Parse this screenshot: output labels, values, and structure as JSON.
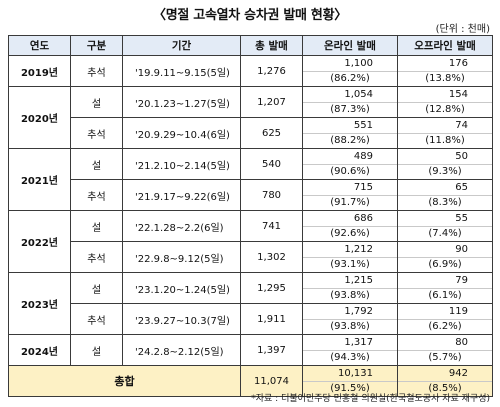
{
  "title": "〈명절 고속열차 승차권 발매 현황〉",
  "unit": "(단위 : 천매)",
  "headers": [
    "연도",
    "구분",
    "기간",
    "총 발매",
    "온라인 발매",
    "오프라인 발매"
  ],
  "rows": [
    {
      "year": "2019년",
      "type": "추석",
      "period": "'19.9.11~9.15(5일)",
      "total": "1,276",
      "online": "1,100",
      "online_pct": "(86.2%)",
      "offline": "176",
      "offline_pct": "(13.8%)"
    },
    {
      "year": "2020년",
      "type": "설",
      "period": "'20.1.23~1.27(5일)",
      "total": "1,207",
      "online": "1,054",
      "online_pct": "(87.3%)",
      "offline": "154",
      "offline_pct": "(12.8%)"
    },
    {
      "year": "",
      "type": "추석",
      "period": "'20.9.29~10.4(6일)",
      "total": "625",
      "online": "551",
      "online_pct": "(88.2%)",
      "offline": "74",
      "offline_pct": "(11.8%)"
    },
    {
      "year": "2021년",
      "type": "설",
      "period": "'21.2.10~2.14(5일)",
      "total": "540",
      "online": "489",
      "online_pct": "(90.6%)",
      "offline": "50",
      "offline_pct": "(9.3%)"
    },
    {
      "year": "",
      "type": "추석",
      "period": "'21.9.17~9.22(6일)",
      "total": "780",
      "online": "715",
      "online_pct": "(91.7%)",
      "offline": "65",
      "offline_pct": "(8.3%)"
    },
    {
      "year": "2022년",
      "type": "설",
      "period": "'22.1.28~2.2(6일)",
      "total": "741",
      "online": "686",
      "online_pct": "(92.6%)",
      "offline": "55",
      "offline_pct": "(7.4%)"
    },
    {
      "year": "",
      "type": "추석",
      "period": "'22.9.8~9.12(5일)",
      "total": "1,302",
      "online": "1,212",
      "online_pct": "(93.1%)",
      "offline": "90",
      "offline_pct": "(6.9%)"
    },
    {
      "year": "2023년",
      "type": "설",
      "period": "'23.1.20~1.24(5일)",
      "total": "1,295",
      "online": "1,215",
      "online_pct": "(93.8%)",
      "offline": "79",
      "offline_pct": "(6.1%)"
    },
    {
      "year": "",
      "type": "추석",
      "period": "'23.9.27~10.3(7일)",
      "total": "1,911",
      "online": "1,792",
      "online_pct": "(93.8%)",
      "offline": "119",
      "offline_pct": "(6.2%)"
    },
    {
      "year": "2024년",
      "type": "설",
      "period": "'24.2.8~2.12(5일)",
      "total": "1,397",
      "online": "1,317",
      "online_pct": "(94.3%)",
      "offline": "80",
      "offline_pct": "(5.7%)"
    }
  ],
  "total_row": {
    "label": "총합",
    "total": "11,074",
    "online": "10,131",
    "online_pct": "(91.5%)",
    "offline": "942",
    "offline_pct": "(8.5%)"
  },
  "source": "*자료 : 더불어민주당 민홍철 의원실(한국철도공사 자료 재구성)",
  "colors": {
    "header_bg": "#e3ebf6",
    "total_bg": "#fdf1c5",
    "border": "#3a3a3a"
  }
}
